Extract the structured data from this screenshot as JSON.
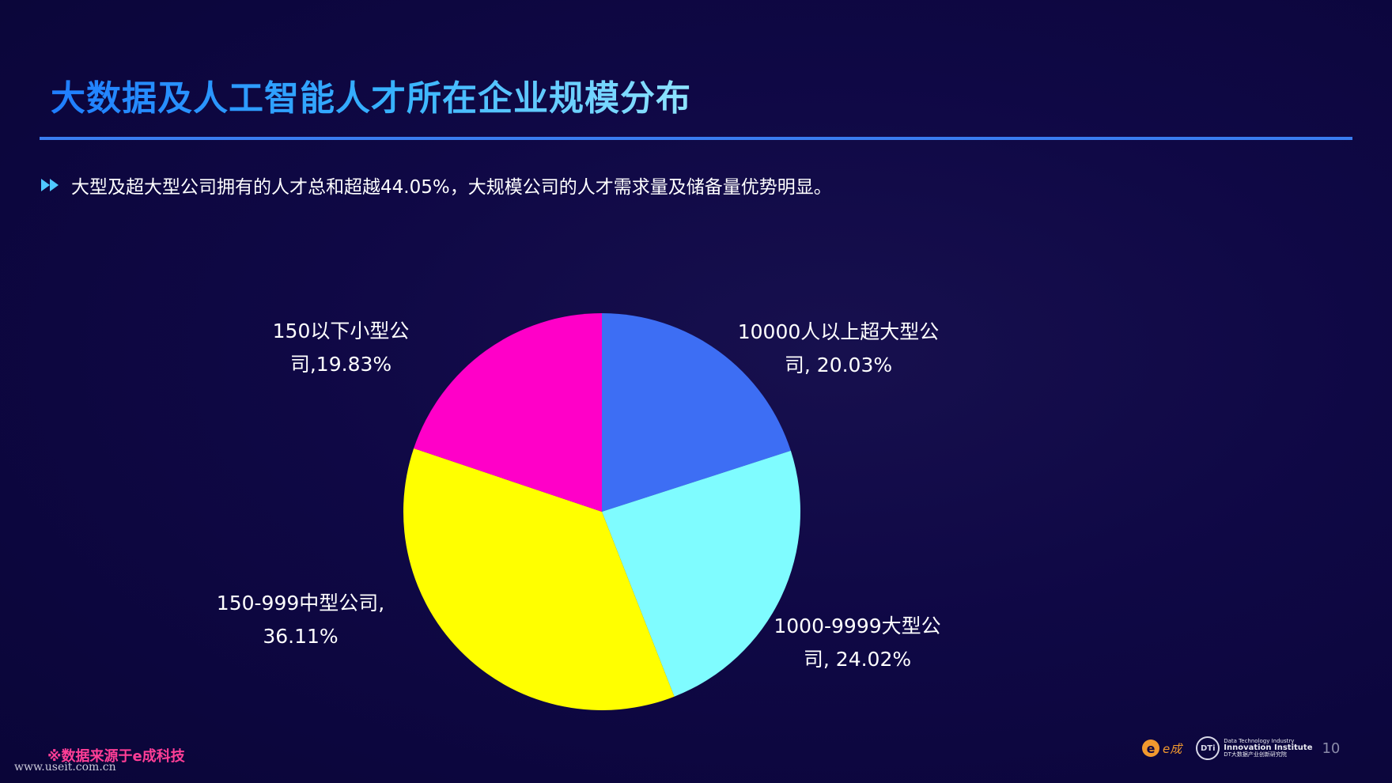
{
  "header": {
    "title": "大数据及人工智能人才所在企业规模分布"
  },
  "summary": {
    "bullet_icon": "double-arrow-right-icon",
    "text": "大型及超大型公司拥有的人才总和超越44.05%，大规模公司的人才需求量及储备量优势明显。"
  },
  "chart_data": {
    "type": "pie",
    "start_angle_deg": 0,
    "direction": "clockwise",
    "slices": [
      {
        "label_line1": "10000人以上超大型公",
        "label_line2": "司, 20.03%",
        "value": 20.03,
        "color": "#3d6ef4"
      },
      {
        "label_line1": "1000-9999大型公",
        "label_line2": "司, 24.02%",
        "value": 24.02,
        "color": "#7ffcff"
      },
      {
        "label_line1": "150-999中型公司,",
        "label_line2": "36.11%",
        "value": 36.11,
        "color": "#ffff00"
      },
      {
        "label_line1": "150以下小型公",
        "label_line2": "司,19.83%",
        "value": 19.83,
        "color": "#ff00c8"
      }
    ]
  },
  "footer": {
    "source": "※数据来源于e成科技",
    "watermark": "www.useit.com.cn",
    "logo_e_glyph": "e",
    "logo_e_text": "e成",
    "logo_dt_seal": "DTi",
    "logo_dt_line1": "Data Technology Industry",
    "logo_dt_line2": "Innovation Institute",
    "logo_dt_line3": "DT大数据产业创新研究院",
    "page_number": "10"
  },
  "colors": {
    "background": "#0f0845",
    "title_gradient_start": "#1f7dff",
    "title_gradient_end": "#8fe4ff",
    "rule": "#3a7df0",
    "source_text": "#ff3e96"
  }
}
